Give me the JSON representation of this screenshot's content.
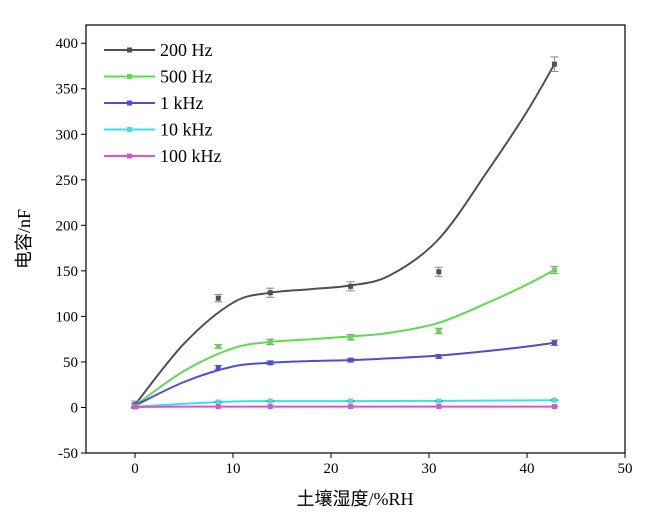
{
  "chart_data": {
    "type": "line",
    "xlabel": "土壤湿度/%RH",
    "ylabel": "电容/nF",
    "xlim": [
      -5,
      50
    ],
    "ylim": [
      -50,
      420
    ],
    "xticks": [
      0,
      10,
      20,
      30,
      40,
      50
    ],
    "yticks": [
      -50,
      0,
      50,
      100,
      150,
      200,
      250,
      300,
      350,
      400
    ],
    "grid": false,
    "legend_position": "top-left",
    "series": [
      {
        "name": "200 Hz",
        "color": "#505050",
        "points": [
          [
            0,
            3
          ],
          [
            8.5,
            120
          ],
          [
            13.8,
            126
          ],
          [
            22,
            133
          ],
          [
            31,
            149
          ],
          [
            42.8,
            377
          ]
        ],
        "errors": [
          4,
          4,
          5,
          5,
          5,
          8
        ],
        "fit": [
          [
            0,
            3
          ],
          [
            5,
            70
          ],
          [
            10,
            115
          ],
          [
            13.8,
            126
          ],
          [
            18,
            130
          ],
          [
            22,
            134
          ],
          [
            26,
            145
          ],
          [
            31,
            185
          ],
          [
            36,
            260
          ],
          [
            40,
            325
          ],
          [
            42.8,
            377
          ]
        ]
      },
      {
        "name": "500 Hz",
        "color": "#5ddc4f",
        "points": [
          [
            0,
            2
          ],
          [
            8.5,
            67
          ],
          [
            13.8,
            72
          ],
          [
            22,
            77
          ],
          [
            31,
            84
          ],
          [
            42.8,
            151
          ]
        ],
        "errors": [
          2,
          2,
          3,
          3,
          3,
          4
        ],
        "fit": [
          [
            0,
            2
          ],
          [
            5,
            40
          ],
          [
            10,
            65
          ],
          [
            13.8,
            72
          ],
          [
            18,
            75
          ],
          [
            22,
            78
          ],
          [
            26,
            82
          ],
          [
            31,
            93
          ],
          [
            36,
            115
          ],
          [
            40,
            135
          ],
          [
            42.8,
            151
          ]
        ]
      },
      {
        "name": "1 kHz",
        "color": "#4d4ed0",
        "points": [
          [
            0,
            2
          ],
          [
            8.5,
            44
          ],
          [
            13.8,
            49
          ],
          [
            22,
            52
          ],
          [
            31,
            56
          ],
          [
            42.8,
            71
          ]
        ],
        "errors": [
          1.5,
          2,
          2,
          2,
          2,
          3
        ],
        "fit": [
          [
            0,
            2
          ],
          [
            5,
            28
          ],
          [
            10,
            45
          ],
          [
            13.8,
            49
          ],
          [
            18,
            51
          ],
          [
            22,
            52
          ],
          [
            26,
            54
          ],
          [
            31,
            57
          ],
          [
            36,
            62
          ],
          [
            40,
            67
          ],
          [
            42.8,
            71
          ]
        ]
      },
      {
        "name": "10 kHz",
        "color": "#3ee0e6",
        "points": [
          [
            0,
            1
          ],
          [
            8.5,
            6
          ],
          [
            13.8,
            7
          ],
          [
            22,
            7
          ],
          [
            31,
            7
          ],
          [
            42.8,
            8
          ]
        ],
        "errors": [
          0.5,
          0.5,
          0.5,
          0.5,
          0.5,
          0.5
        ],
        "fit": [
          [
            0,
            1
          ],
          [
            5,
            4
          ],
          [
            10,
            6.5
          ],
          [
            13.8,
            7
          ],
          [
            22,
            7
          ],
          [
            31,
            7.2
          ],
          [
            42.8,
            8
          ]
        ]
      },
      {
        "name": "100 kHz",
        "color": "#e04fd8",
        "points": [
          [
            0,
            0.5
          ],
          [
            8.5,
            1
          ],
          [
            13.8,
            1
          ],
          [
            22,
            1
          ],
          [
            31,
            1
          ],
          [
            42.8,
            1
          ]
        ],
        "errors": [
          0.3,
          0.3,
          0.3,
          0.3,
          0.3,
          0.3
        ],
        "fit": [
          [
            0,
            0.5
          ],
          [
            5,
            0.9
          ],
          [
            10,
            1
          ],
          [
            22,
            1
          ],
          [
            31,
            1
          ],
          [
            42.8,
            1
          ]
        ]
      }
    ]
  }
}
